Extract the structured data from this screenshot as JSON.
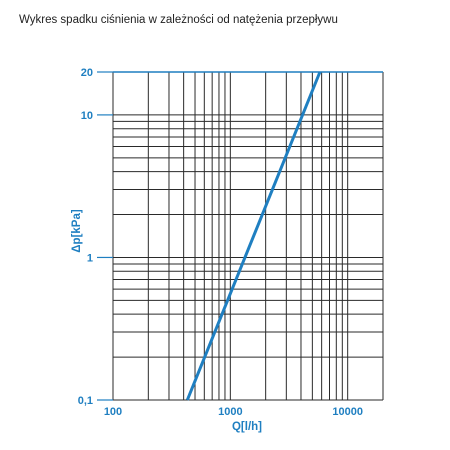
{
  "title": "Wykres spadku ciśnienia w zależności od natężenia przepływu",
  "colors": {
    "accent": "#1f7fc1",
    "grid": "#2a2a2a",
    "text": "#222222"
  },
  "chart_data": {
    "type": "line",
    "title": "Wykres spadku ciśnienia w zależności od natężenia przepływu",
    "xlabel": "Q[l/h]",
    "ylabel": "Δp[kPa]",
    "x_scale": "log",
    "y_scale": "log",
    "xlim": [
      100,
      20000
    ],
    "ylim": [
      0.1,
      20
    ],
    "x_tick_labels": [
      {
        "value": 100,
        "label": "100"
      },
      {
        "value": 1000,
        "label": "1000"
      },
      {
        "value": 10000,
        "label": "10000"
      }
    ],
    "y_tick_labels": [
      {
        "value": 0.1,
        "label": "0,1"
      },
      {
        "value": 1,
        "label": "1"
      },
      {
        "value": 10,
        "label": "10"
      },
      {
        "value": 20,
        "label": "20"
      }
    ],
    "grid": true,
    "series": [
      {
        "x": [
          430,
          5800
        ],
        "y": [
          0.1,
          20
        ]
      }
    ]
  }
}
